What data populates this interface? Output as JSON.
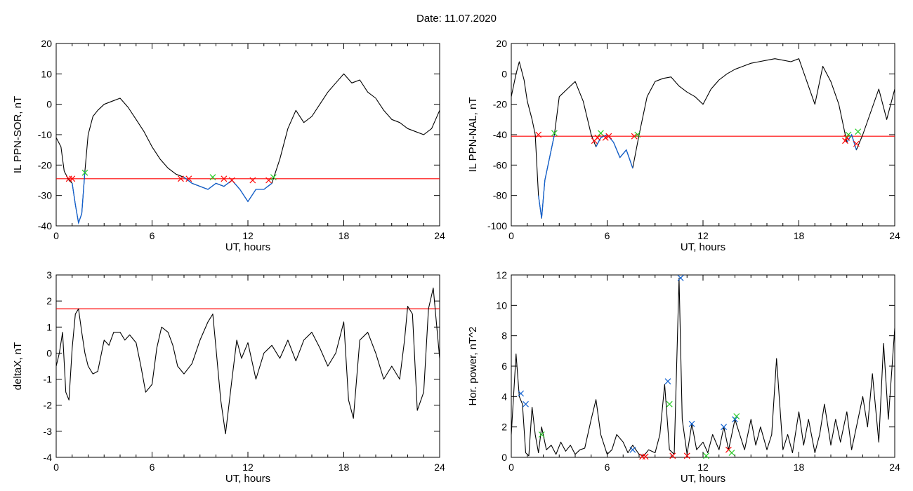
{
  "page": {
    "title": "Date:  11.07.2020"
  },
  "colors": {
    "trace": "#000000",
    "threshold": "#ff0000",
    "highlight": "#1060d0",
    "cross_red": "#ff0000",
    "cross_green": "#22cc22",
    "cross_blue": "#1060d0"
  },
  "chart_data": [
    {
      "type": "line",
      "xlabel": "UT, hours",
      "ylabel": "IL PPN-SOR, nT",
      "xlim": [
        0,
        24
      ],
      "ylim": [
        -40,
        20
      ],
      "xticks": [
        0,
        6,
        12,
        18,
        24
      ],
      "yticks": [
        -40,
        -30,
        -20,
        -10,
        0,
        10,
        20
      ],
      "threshold": -24.5,
      "series": [
        {
          "x": [
            0,
            0.3,
            0.5,
            0.8,
            1.0,
            1.2,
            1.4,
            1.6,
            1.8,
            2.0,
            2.3,
            2.6,
            3.0,
            3.5,
            4.0,
            4.5,
            5.0,
            5.5,
            6.0,
            6.5,
            7.0,
            7.5,
            8.0,
            8.5,
            9.0,
            9.5,
            10.0,
            10.5,
            11.0,
            11.5,
            12.0,
            12.5,
            13.0,
            13.5,
            14.0,
            14.5,
            15.0,
            15.5,
            16.0,
            16.5,
            17.0,
            17.5,
            18.0,
            18.5,
            19.0,
            19.5,
            20.0,
            20.5,
            21.0,
            21.5,
            22.0,
            22.5,
            23.0,
            23.5,
            24.0
          ],
          "y": [
            -11,
            -14,
            -22,
            -25,
            -26,
            -33,
            -39,
            -36,
            -22,
            -10,
            -4,
            -2,
            0,
            1,
            2,
            -1,
            -5,
            -9,
            -14,
            -18,
            -21,
            -23,
            -24,
            -26,
            -27,
            -28,
            -26,
            -27,
            -25,
            -28,
            -32,
            -28,
            -28,
            -26,
            -18,
            -8,
            -2,
            -6,
            -4,
            0,
            4,
            7,
            10,
            7,
            8,
            4,
            2,
            -2,
            -5,
            -6,
            -8,
            -9,
            -10,
            -8,
            -2
          ]
        }
      ],
      "highlight_spans": [
        [
          0.9,
          1.8
        ],
        [
          7.8,
          13.6
        ]
      ],
      "markers": [
        {
          "x": 0.8,
          "y": -24.5,
          "color": "red"
        },
        {
          "x": 1.0,
          "y": -24.5,
          "color": "red"
        },
        {
          "x": 1.8,
          "y": -22.5,
          "color": "green"
        },
        {
          "x": 7.8,
          "y": -24.5,
          "color": "red"
        },
        {
          "x": 8.3,
          "y": -24.5,
          "color": "red"
        },
        {
          "x": 9.8,
          "y": -24.0,
          "color": "green"
        },
        {
          "x": 10.5,
          "y": -24.5,
          "color": "red"
        },
        {
          "x": 11.0,
          "y": -25.0,
          "color": "red"
        },
        {
          "x": 12.3,
          "y": -25.0,
          "color": "red"
        },
        {
          "x": 13.3,
          "y": -25.0,
          "color": "red"
        },
        {
          "x": 13.6,
          "y": -24.0,
          "color": "green"
        }
      ]
    },
    {
      "type": "line",
      "xlabel": "UT, hours",
      "ylabel": "IL PPN-NAL, nT",
      "xlim": [
        0,
        24
      ],
      "ylim": [
        -100,
        20
      ],
      "xticks": [
        0,
        6,
        12,
        18,
        24
      ],
      "yticks": [
        -100,
        -80,
        -60,
        -40,
        -20,
        0,
        20
      ],
      "threshold": -41,
      "series": [
        {
          "x": [
            0,
            0.3,
            0.5,
            0.8,
            1.0,
            1.3,
            1.5,
            1.7,
            1.9,
            2.1,
            2.4,
            2.7,
            3.0,
            3.5,
            4.0,
            4.5,
            5.0,
            5.3,
            5.6,
            6.0,
            6.4,
            6.8,
            7.2,
            7.6,
            8.0,
            8.5,
            9.0,
            9.5,
            10.0,
            10.5,
            11.0,
            11.5,
            12.0,
            12.5,
            13.0,
            13.5,
            14.0,
            14.5,
            15.0,
            15.5,
            16.0,
            16.5,
            17.0,
            17.5,
            18.0,
            18.5,
            19.0,
            19.5,
            20.0,
            20.5,
            21.0,
            21.3,
            21.6,
            22.0,
            22.5,
            23.0,
            23.5,
            24.0
          ],
          "y": [
            -15,
            0,
            8,
            -4,
            -18,
            -30,
            -40,
            -80,
            -95,
            -70,
            -55,
            -40,
            -15,
            -10,
            -5,
            -18,
            -40,
            -48,
            -42,
            -40,
            -45,
            -55,
            -50,
            -62,
            -40,
            -15,
            -5,
            -3,
            -2,
            -8,
            -12,
            -15,
            -20,
            -10,
            -4,
            0,
            3,
            5,
            7,
            8,
            9,
            10,
            9,
            8,
            10,
            -5,
            -20,
            5,
            -5,
            -20,
            -45,
            -40,
            -50,
            -40,
            -25,
            -10,
            -30,
            -10
          ]
        }
      ],
      "highlight_spans": [
        [
          1.7,
          2.7
        ],
        [
          5.2,
          7.8
        ],
        [
          20.9,
          21.6
        ]
      ],
      "markers": [
        {
          "x": 1.7,
          "y": -40,
          "color": "red"
        },
        {
          "x": 2.7,
          "y": -39,
          "color": "green"
        },
        {
          "x": 5.2,
          "y": -44,
          "color": "red"
        },
        {
          "x": 5.4,
          "y": -42,
          "color": "red"
        },
        {
          "x": 5.6,
          "y": -39,
          "color": "green"
        },
        {
          "x": 5.9,
          "y": -42,
          "color": "red"
        },
        {
          "x": 6.1,
          "y": -41,
          "color": "red"
        },
        {
          "x": 7.7,
          "y": -41,
          "color": "red"
        },
        {
          "x": 7.9,
          "y": -40,
          "color": "green"
        },
        {
          "x": 20.9,
          "y": -44,
          "color": "red"
        },
        {
          "x": 21.0,
          "y": -42,
          "color": "red"
        },
        {
          "x": 21.1,
          "y": -40,
          "color": "green"
        },
        {
          "x": 21.6,
          "y": -46,
          "color": "red"
        },
        {
          "x": 21.7,
          "y": -38,
          "color": "green"
        }
      ]
    },
    {
      "type": "line",
      "xlabel": "UT, hours",
      "ylabel": "deltaX, nT",
      "xlim": [
        0,
        24
      ],
      "ylim": [
        -4,
        3
      ],
      "xticks": [
        0,
        6,
        12,
        18,
        24
      ],
      "yticks": [
        -4,
        -3,
        -2,
        -1,
        0,
        1,
        2,
        3
      ],
      "threshold": 1.7,
      "series": [
        {
          "x": [
            0,
            0.2,
            0.4,
            0.6,
            0.8,
            1.0,
            1.2,
            1.4,
            1.6,
            1.8,
            2.0,
            2.3,
            2.6,
            3.0,
            3.3,
            3.6,
            4.0,
            4.3,
            4.6,
            5.0,
            5.3,
            5.6,
            6.0,
            6.3,
            6.6,
            7.0,
            7.3,
            7.6,
            8.0,
            8.5,
            9.0,
            9.5,
            9.8,
            10.0,
            10.3,
            10.6,
            11.0,
            11.3,
            11.6,
            12.0,
            12.5,
            13.0,
            13.5,
            14.0,
            14.5,
            15.0,
            15.5,
            16.0,
            16.5,
            17.0,
            17.5,
            18.0,
            18.3,
            18.6,
            19.0,
            19.5,
            20.0,
            20.5,
            21.0,
            21.5,
            21.8,
            22.0,
            22.3,
            22.6,
            23.0,
            23.3,
            23.6,
            24.0
          ],
          "y": [
            -0.5,
            0,
            0.8,
            -1.5,
            -1.8,
            0.2,
            1.5,
            1.7,
            0.8,
            0,
            -0.5,
            -0.8,
            -0.7,
            0.5,
            0.3,
            0.8,
            0.8,
            0.5,
            0.7,
            0.4,
            -0.5,
            -1.5,
            -1.2,
            0.2,
            1.0,
            0.8,
            0.3,
            -0.5,
            -0.8,
            -0.4,
            0.5,
            1.2,
            1.5,
            0.2,
            -1.8,
            -3.1,
            -1.0,
            0.5,
            -0.2,
            0.4,
            -1.0,
            0,
            0.3,
            -0.2,
            0.5,
            -0.3,
            0.5,
            0.8,
            0.2,
            -0.5,
            0,
            1.2,
            -1.8,
            -2.5,
            0.5,
            0.8,
            0,
            -1.0,
            -0.5,
            -1.0,
            0.5,
            1.8,
            1.5,
            -2.2,
            -1.5,
            1.7,
            2.5,
            -0.2
          ]
        }
      ],
      "highlight_spans": [],
      "markers": []
    },
    {
      "type": "line",
      "xlabel": "UT, hours",
      "ylabel": "Hor. power, nT^2",
      "xlim": [
        0,
        24
      ],
      "ylim": [
        0,
        12
      ],
      "xticks": [
        0,
        6,
        12,
        18,
        24
      ],
      "yticks": [
        0,
        2,
        4,
        6,
        8,
        10,
        12
      ],
      "threshold": null,
      "series": [
        {
          "x": [
            0,
            0.3,
            0.5,
            0.7,
            0.9,
            1.1,
            1.3,
            1.5,
            1.7,
            1.9,
            2.2,
            2.5,
            2.8,
            3.1,
            3.4,
            3.7,
            4.0,
            4.3,
            4.6,
            5.0,
            5.3,
            5.6,
            6.0,
            6.3,
            6.6,
            7.0,
            7.3,
            7.6,
            8.0,
            8.3,
            8.6,
            9.0,
            9.3,
            9.6,
            9.9,
            10.2,
            10.5,
            10.7,
            11.0,
            11.3,
            11.6,
            12.0,
            12.3,
            12.6,
            13.0,
            13.3,
            13.6,
            14.0,
            14.3,
            14.6,
            15.0,
            15.3,
            15.6,
            16.0,
            16.3,
            16.6,
            17.0,
            17.3,
            17.6,
            18.0,
            18.3,
            18.6,
            19.0,
            19.3,
            19.6,
            20.0,
            20.3,
            20.6,
            21.0,
            21.3,
            21.6,
            22.0,
            22.3,
            22.6,
            23.0,
            23.3,
            23.6,
            24.0
          ],
          "y": [
            1.5,
            6.8,
            4.0,
            3.5,
            0.3,
            0.1,
            3.3,
            1.5,
            0.3,
            2.0,
            0.5,
            0.8,
            0.2,
            1.0,
            0.4,
            0.8,
            0.2,
            0.5,
            0.6,
            2.5,
            3.8,
            1.5,
            0.2,
            0.5,
            1.5,
            1.0,
            0.3,
            0.8,
            0.2,
            0.1,
            0.5,
            0.3,
            1.5,
            4.8,
            0.5,
            0.2,
            11.8,
            2.5,
            0.2,
            2.2,
            0.5,
            1.0,
            0.3,
            1.5,
            0.5,
            2.0,
            0.5,
            2.5,
            1.5,
            0.5,
            2.5,
            0.8,
            2.0,
            0.5,
            1.5,
            6.5,
            0.5,
            1.5,
            0.3,
            3.0,
            0.8,
            2.5,
            0.3,
            1.5,
            3.5,
            0.8,
            2.5,
            1.0,
            3.0,
            0.5,
            2.0,
            4.0,
            2.0,
            5.5,
            1.0,
            7.5,
            2.5,
            8.5
          ]
        }
      ],
      "highlight_spans": [],
      "markers": [
        {
          "x": 0.6,
          "y": 4.2,
          "color": "blue"
        },
        {
          "x": 0.9,
          "y": 3.5,
          "color": "blue"
        },
        {
          "x": 1.9,
          "y": 1.5,
          "color": "green"
        },
        {
          "x": 7.6,
          "y": 0.5,
          "color": "blue"
        },
        {
          "x": 8.2,
          "y": 0.05,
          "color": "red"
        },
        {
          "x": 8.4,
          "y": 0.05,
          "color": "red"
        },
        {
          "x": 9.8,
          "y": 5.0,
          "color": "blue"
        },
        {
          "x": 9.9,
          "y": 3.5,
          "color": "green"
        },
        {
          "x": 10.1,
          "y": 0.1,
          "color": "red"
        },
        {
          "x": 10.6,
          "y": 11.8,
          "color": "blue"
        },
        {
          "x": 11.0,
          "y": 0.1,
          "color": "red"
        },
        {
          "x": 11.3,
          "y": 2.2,
          "color": "blue"
        },
        {
          "x": 12.2,
          "y": 0.1,
          "color": "green"
        },
        {
          "x": 13.3,
          "y": 2.0,
          "color": "blue"
        },
        {
          "x": 13.6,
          "y": 0.5,
          "color": "red"
        },
        {
          "x": 13.8,
          "y": 0.3,
          "color": "green"
        },
        {
          "x": 14.0,
          "y": 2.5,
          "color": "blue"
        },
        {
          "x": 14.1,
          "y": 2.7,
          "color": "green"
        }
      ]
    }
  ]
}
